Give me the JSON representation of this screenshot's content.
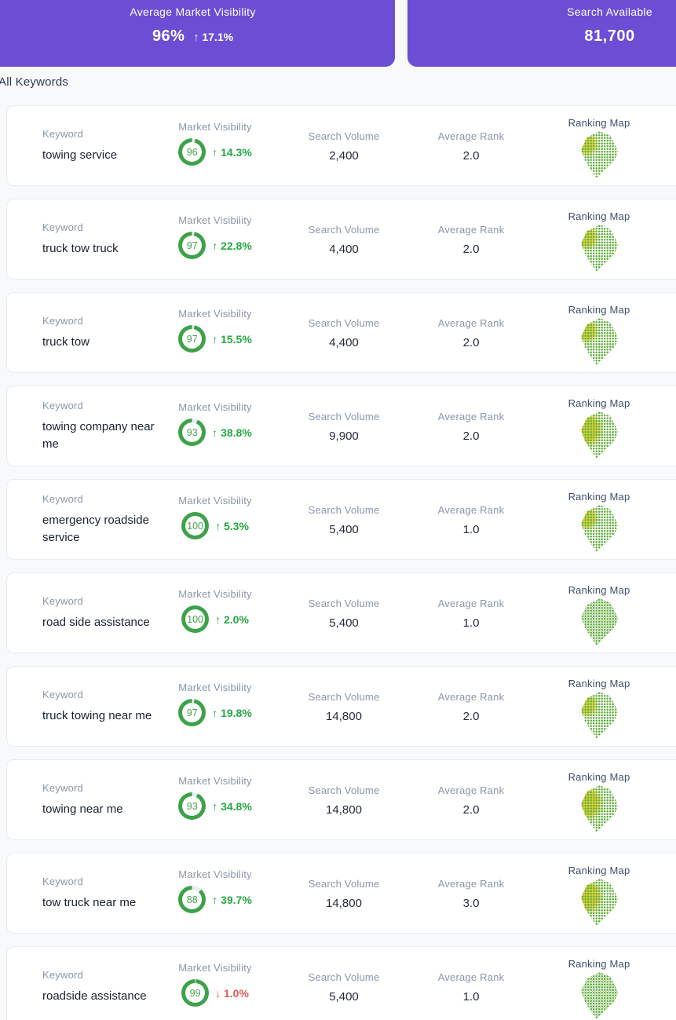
{
  "summary_cards": [
    {
      "label": "Average Market Visibility",
      "value": "96%",
      "change": "17.1%",
      "direction": "up"
    },
    {
      "label": "Search Available",
      "value": "81,700"
    }
  ],
  "section_title": "All Keywords",
  "row_labels": {
    "keyword": "Keyword",
    "market_visibility": "Market Visibility",
    "search_volume": "Search Volume",
    "average_rank": "Average Rank",
    "ranking_map": "Ranking Map"
  },
  "icons": {
    "up_arrow": "↑",
    "down_arrow": "↓"
  },
  "colors": {
    "accent_purple": "#6b4ed3",
    "ring_green": "#3da24a",
    "change_up_green": "#26a743",
    "change_down_red": "#e05a5a",
    "map_green": "#60ae3b",
    "map_yellow": "#e0d03a"
  },
  "keywords": [
    {
      "keyword": "towing service",
      "visibility": 96,
      "change": "14.3%",
      "direction": "up",
      "search_volume": "2,400",
      "average_rank": "2.0",
      "map_style": "y-light"
    },
    {
      "keyword": "truck tow truck",
      "visibility": 97,
      "change": "22.8%",
      "direction": "up",
      "search_volume": "4,400",
      "average_rank": "2.0",
      "map_style": "y-light"
    },
    {
      "keyword": "truck tow",
      "visibility": 97,
      "change": "15.5%",
      "direction": "up",
      "search_volume": "4,400",
      "average_rank": "2.0",
      "map_style": "y-light"
    },
    {
      "keyword": "towing company near me",
      "visibility": 93,
      "change": "38.8%",
      "direction": "up",
      "search_volume": "9,900",
      "average_rank": "2.0",
      "map_style": "y-strong"
    },
    {
      "keyword": "emergency roadside service",
      "visibility": 100,
      "change": "5.3%",
      "direction": "up",
      "search_volume": "5,400",
      "average_rank": "1.0",
      "map_style": "y-light"
    },
    {
      "keyword": "road side assistance",
      "visibility": 100,
      "change": "2.0%",
      "direction": "up",
      "search_volume": "5,400",
      "average_rank": "1.0",
      "map_style": "y-none"
    },
    {
      "keyword": "truck towing near me",
      "visibility": 97,
      "change": "19.8%",
      "direction": "up",
      "search_volume": "14,800",
      "average_rank": "2.0",
      "map_style": "y-light"
    },
    {
      "keyword": "towing near me",
      "visibility": 93,
      "change": "34.8%",
      "direction": "up",
      "search_volume": "14,800",
      "average_rank": "2.0",
      "map_style": "y-strong"
    },
    {
      "keyword": "tow truck near me",
      "visibility": 88,
      "change": "39.7%",
      "direction": "up",
      "search_volume": "14,800",
      "average_rank": "3.0",
      "map_style": "y-strong"
    },
    {
      "keyword": "roadside assistance",
      "visibility": 99,
      "change": "1.0%",
      "direction": "down",
      "search_volume": "5,400",
      "average_rank": "1.0",
      "map_style": "y-none"
    }
  ]
}
